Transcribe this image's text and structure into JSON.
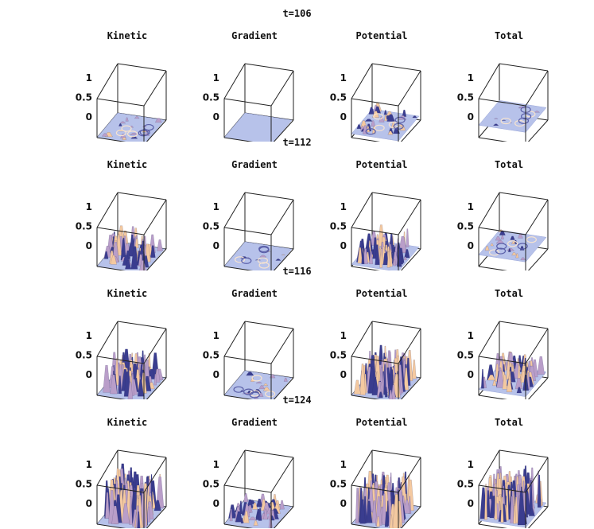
{
  "chart_data": {
    "type": "surface3d",
    "panel_titles": [
      "Kinetic",
      "Gradient",
      "Potential",
      "Total"
    ],
    "z_ticks": [
      "1",
      "0.5",
      "0"
    ],
    "zlim": [
      0,
      1
    ],
    "colors": {
      "base": "#b7c2ea",
      "light": "#f4c9a0",
      "mid": "#b99ec9",
      "dark": "#3a3d8f"
    },
    "rows": [
      {
        "label": "t=106",
        "amplitude": [
          0.12,
          0.0,
          0.22,
          0.05
        ],
        "offset": [
          0.0,
          0.0,
          0.1,
          0.32
        ]
      },
      {
        "label": "t=112",
        "amplitude": [
          0.55,
          0.05,
          0.55,
          0.12
        ],
        "offset": [
          0.0,
          0.0,
          0.05,
          0.3
        ]
      },
      {
        "label": "t=116",
        "amplitude": [
          0.7,
          0.1,
          0.8,
          0.5
        ],
        "offset": [
          0.0,
          0.0,
          0.0,
          0.15
        ]
      },
      {
        "label": "t=124",
        "amplitude": [
          1.0,
          0.35,
          0.95,
          0.95
        ],
        "offset": [
          0.0,
          0.0,
          0.0,
          0.1
        ]
      }
    ]
  }
}
